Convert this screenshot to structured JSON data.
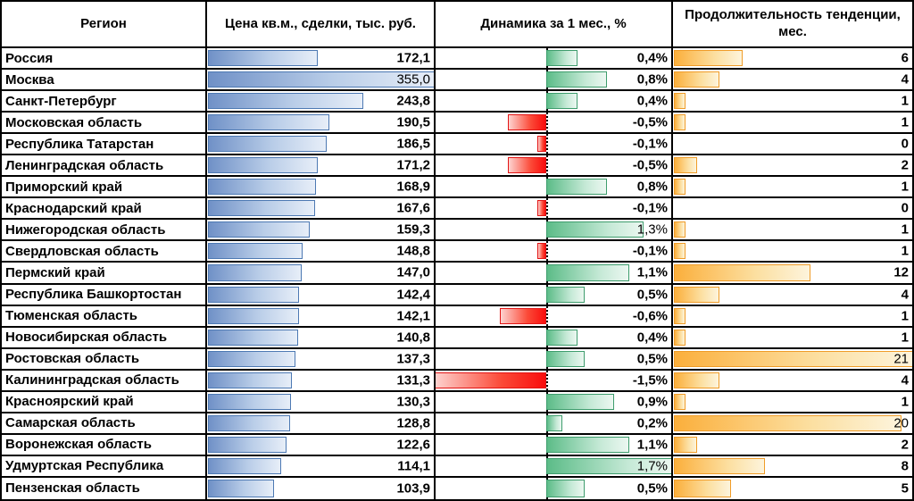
{
  "table": {
    "headers": [
      "Регион",
      "Цена кв.м., сделки, тыс. руб.",
      "Динамика за 1 мес., %",
      "Продолжительность тенденции, мес."
    ]
  },
  "colors": {
    "price_bar_start": "#7091c7",
    "price_bar_border": "#4d79b3",
    "positive_bar_start": "#5cbc88",
    "positive_bar_border": "#3e9d6d",
    "negative_bar_end": "#f90d0d",
    "negative_bar_border": "#e21414",
    "duration_bar_start": "#fbaf3c",
    "duration_bar_border": "#f09c28",
    "grid_border": "#000000",
    "text": "#000000"
  },
  "chart_data": {
    "type": "table",
    "title": "",
    "columns": [
      "Регион",
      "Цена кв.м., сделки, тыс. руб.",
      "Динамика за 1 мес., %",
      "Продолжительность тенденции, мес."
    ],
    "bar_scales": {
      "price": {
        "min": 0,
        "max": 355
      },
      "dynamics": {
        "min": -1.5,
        "max": 1.7
      },
      "duration": {
        "min": 0,
        "max": 21
      }
    },
    "legend": "in-cell data bars: blue = price, green = positive monthly change, red = negative monthly change, orange = trend duration",
    "rows": [
      {
        "region": "Россия",
        "price": 172.1,
        "price_label": "172,1",
        "dynamics": 0.4,
        "dynamics_label": "0,4%",
        "duration": 6,
        "duration_label": "6"
      },
      {
        "region": "Москва",
        "price": 355.0,
        "price_label": "355,0",
        "dynamics": 0.8,
        "dynamics_label": "0,8%",
        "duration": 4,
        "duration_label": "4"
      },
      {
        "region": "Санкт-Петербург",
        "price": 243.8,
        "price_label": "243,8",
        "dynamics": 0.4,
        "dynamics_label": "0,4%",
        "duration": 1,
        "duration_label": "1"
      },
      {
        "region": "Московская область",
        "price": 190.5,
        "price_label": "190,5",
        "dynamics": -0.5,
        "dynamics_label": "-0,5%",
        "duration": 1,
        "duration_label": "1"
      },
      {
        "region": "Республика Татарстан",
        "price": 186.5,
        "price_label": "186,5",
        "dynamics": -0.1,
        "dynamics_label": "-0,1%",
        "duration": 0,
        "duration_label": "0"
      },
      {
        "region": "Ленинградская область",
        "price": 171.2,
        "price_label": "171,2",
        "dynamics": -0.5,
        "dynamics_label": "-0,5%",
        "duration": 2,
        "duration_label": "2"
      },
      {
        "region": "Приморский край",
        "price": 168.9,
        "price_label": "168,9",
        "dynamics": 0.8,
        "dynamics_label": "0,8%",
        "duration": 1,
        "duration_label": "1"
      },
      {
        "region": "Краснодарский край",
        "price": 167.6,
        "price_label": "167,6",
        "dynamics": -0.1,
        "dynamics_label": "-0,1%",
        "duration": 0,
        "duration_label": "0"
      },
      {
        "region": "Нижегородская область",
        "price": 159.3,
        "price_label": "159,3",
        "dynamics": 1.3,
        "dynamics_label": "1,3%",
        "duration": 1,
        "duration_label": "1"
      },
      {
        "region": "Свердловская область",
        "price": 148.8,
        "price_label": "148,8",
        "dynamics": -0.1,
        "dynamics_label": "-0,1%",
        "duration": 1,
        "duration_label": "1"
      },
      {
        "region": "Пермский край",
        "price": 147.0,
        "price_label": "147,0",
        "dynamics": 1.1,
        "dynamics_label": "1,1%",
        "duration": 12,
        "duration_label": "12"
      },
      {
        "region": "Республика Башкортостан",
        "price": 142.4,
        "price_label": "142,4",
        "dynamics": 0.5,
        "dynamics_label": "0,5%",
        "duration": 4,
        "duration_label": "4"
      },
      {
        "region": "Тюменская область",
        "price": 142.1,
        "price_label": "142,1",
        "dynamics": -0.6,
        "dynamics_label": "-0,6%",
        "duration": 1,
        "duration_label": "1"
      },
      {
        "region": "Новосибирская область",
        "price": 140.8,
        "price_label": "140,8",
        "dynamics": 0.4,
        "dynamics_label": "0,4%",
        "duration": 1,
        "duration_label": "1"
      },
      {
        "region": "Ростовская область",
        "price": 137.3,
        "price_label": "137,3",
        "dynamics": 0.5,
        "dynamics_label": "0,5%",
        "duration": 21,
        "duration_label": "21"
      },
      {
        "region": "Калининградская область",
        "price": 131.3,
        "price_label": "131,3",
        "dynamics": -1.5,
        "dynamics_label": "-1,5%",
        "duration": 4,
        "duration_label": "4"
      },
      {
        "region": "Красноярский край",
        "price": 130.3,
        "price_label": "130,3",
        "dynamics": 0.9,
        "dynamics_label": "0,9%",
        "duration": 1,
        "duration_label": "1"
      },
      {
        "region": "Самарская область",
        "price": 128.8,
        "price_label": "128,8",
        "dynamics": 0.2,
        "dynamics_label": "0,2%",
        "duration": 20,
        "duration_label": "20"
      },
      {
        "region": "Воронежская область",
        "price": 122.6,
        "price_label": "122,6",
        "dynamics": 1.1,
        "dynamics_label": "1,1%",
        "duration": 2,
        "duration_label": "2"
      },
      {
        "region": "Удмуртская Республика",
        "price": 114.1,
        "price_label": "114,1",
        "dynamics": 1.7,
        "dynamics_label": "1,7%",
        "duration": 8,
        "duration_label": "8"
      },
      {
        "region": "Пензенская область",
        "price": 103.9,
        "price_label": "103,9",
        "dynamics": 0.5,
        "dynamics_label": "0,5%",
        "duration": 5,
        "duration_label": "5"
      }
    ]
  }
}
